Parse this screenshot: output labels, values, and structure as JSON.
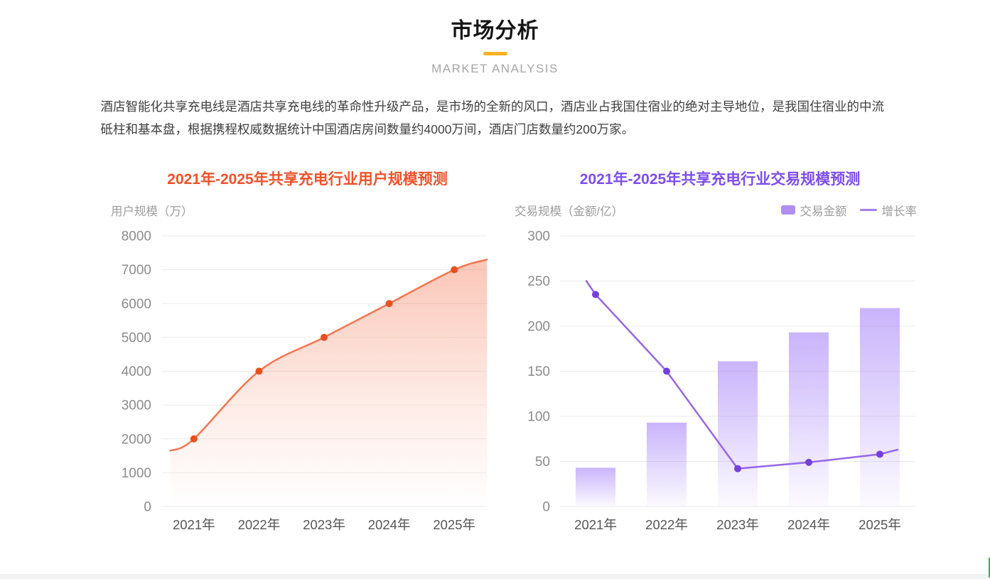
{
  "header": {
    "title": "市场分析",
    "subtitle": "MARKET ANALYSIS",
    "accent_color": "#FBB224"
  },
  "intro": "酒店智能化共享充电线是酒店共享充电线的革命性升级产品，是市场的全新的风口，酒店业占我国住宿业的绝对主导地位，是我国住宿业的中流砥柱和基本盘，根据携程权威数据统计中国酒店房间数量约4000万间，酒店门店数量约200万家。",
  "chart_data": [
    {
      "type": "area",
      "title": "2021年-2025年共享充电行业用户规模预测",
      "title_color": "#f1512a",
      "ylabel": "用户规模（万）",
      "categories": [
        "2021年",
        "2022年",
        "2023年",
        "2024年",
        "2025年"
      ],
      "series": [
        {
          "name": "用户规模",
          "type": "area",
          "values": [
            2000,
            4000,
            5000,
            6000,
            7000
          ],
          "line_edge_values": [
            1650,
            7300
          ],
          "color": "#f4764f",
          "point_color": "#e8501e",
          "fill_color": "#f4714c"
        }
      ],
      "ylim": [
        0,
        8000
      ],
      "yticks": [
        0,
        1000,
        2000,
        3000,
        4000,
        5000,
        6000,
        7000,
        8000
      ],
      "grid": true,
      "legend": null
    },
    {
      "type": "bar+line",
      "title": "2021年-2025年共享充电行业交易规模预测",
      "title_color": "#7d4df2",
      "ylabel": "交易规模（金额/亿）",
      "categories": [
        "2021年",
        "2022年",
        "2023年",
        "2024年",
        "2025年"
      ],
      "series": [
        {
          "name": "交易金额",
          "type": "bar",
          "values": [
            43,
            93,
            161,
            193,
            220
          ],
          "color": "#8b5cf6"
        },
        {
          "name": "增长率",
          "type": "line",
          "values": [
            235,
            150,
            42,
            49,
            58
          ],
          "line_edge_values": [
            250,
            63
          ],
          "color": "#9667ea",
          "point_color": "#7440dc"
        }
      ],
      "ylim": [
        0,
        300
      ],
      "yticks": [
        0,
        50,
        100,
        150,
        200,
        250,
        300
      ],
      "grid": true,
      "legend_position": "top-right"
    }
  ]
}
